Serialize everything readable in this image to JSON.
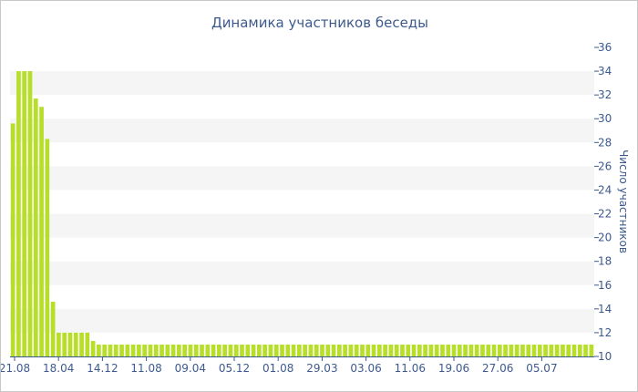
{
  "chart_data": {
    "type": "bar",
    "title": "Динамика участников беседы",
    "ylabel": "Число участников",
    "ylim": [
      10,
      36
    ],
    "yticks": [
      10,
      12,
      14,
      16,
      18,
      20,
      22,
      24,
      26,
      28,
      30,
      32,
      34,
      36
    ],
    "xtick_labels": [
      "21.08",
      "18.04",
      "14.12",
      "11.08",
      "09.04",
      "05.12",
      "01.08",
      "29.03",
      "03.06",
      "11.06",
      "19.06",
      "27.06",
      "05.07"
    ],
    "grid": "horizontal bands",
    "y_axis_side": "right",
    "colors": {
      "bar": "#b7df2a",
      "band": "#f5f5f5",
      "text": "#3d5a8f"
    },
    "values": [
      29.6,
      34,
      34,
      34,
      31.7,
      31,
      28.3,
      14.6,
      12,
      12,
      12,
      12,
      12,
      12,
      11.3,
      11,
      11,
      11,
      11,
      11,
      11,
      11,
      11,
      11,
      11,
      11,
      11,
      11,
      11,
      11,
      11,
      11,
      11,
      11,
      11,
      11,
      11,
      11,
      11,
      11,
      11,
      11,
      11,
      11,
      11,
      11,
      11,
      11,
      11,
      11,
      11,
      11,
      11,
      11,
      11,
      11,
      11,
      11,
      11,
      11,
      11,
      11,
      11,
      11,
      11,
      11,
      11,
      11,
      11,
      11,
      11,
      11,
      11,
      11,
      11,
      11,
      11,
      11,
      11,
      11,
      11,
      11,
      11,
      11,
      11,
      11,
      11,
      11,
      11,
      11,
      11,
      11,
      11,
      11,
      11,
      11,
      11,
      11,
      11,
      11,
      11,
      11
    ]
  }
}
